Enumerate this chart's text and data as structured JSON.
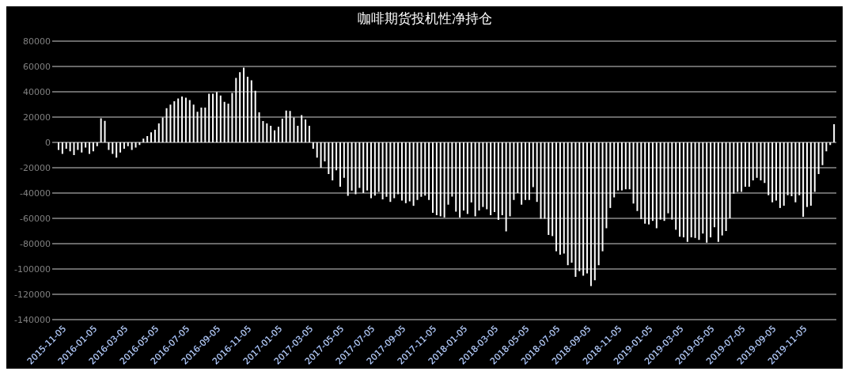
{
  "chart_data": {
    "type": "bar",
    "title": "咖啡期货投机性净持仓",
    "categories": [
      null,
      null,
      "2015-11-05",
      null,
      null,
      null,
      null,
      null,
      null,
      null,
      "2016-01-05",
      null,
      null,
      null,
      null,
      null,
      null,
      null,
      "2016-03-05",
      null,
      null,
      null,
      null,
      null,
      null,
      null,
      "2016-05-05",
      null,
      null,
      null,
      null,
      null,
      null,
      null,
      "2016-07-05",
      null,
      null,
      null,
      null,
      null,
      null,
      null,
      "2016-09-05",
      null,
      null,
      null,
      null,
      null,
      null,
      null,
      "2016-11-05",
      null,
      null,
      null,
      null,
      null,
      null,
      null,
      "2017-01-05",
      null,
      null,
      null,
      null,
      null,
      null,
      null,
      "2017-03-05",
      null,
      null,
      null,
      null,
      null,
      null,
      null,
      "2017-05-05",
      null,
      null,
      null,
      null,
      null,
      null,
      null,
      "2017-07-05",
      null,
      null,
      null,
      null,
      null,
      null,
      null,
      "2017-09-05",
      null,
      null,
      null,
      null,
      null,
      null,
      null,
      "2017-11-05",
      null,
      null,
      null,
      null,
      null,
      null,
      null,
      "2018-01-05",
      null,
      null,
      null,
      null,
      null,
      null,
      null,
      "2018-03-05",
      null,
      null,
      null,
      null,
      null,
      null,
      null,
      "2018-05-05",
      null,
      null,
      null,
      null,
      null,
      null,
      null,
      "2018-07-05",
      null,
      null,
      null,
      null,
      null,
      null,
      null,
      "2018-09-05",
      null,
      null,
      null,
      null,
      null,
      null,
      null,
      "2018-11-05",
      null,
      null,
      null,
      null,
      null,
      null,
      null,
      "2019-01-05",
      null,
      null,
      null,
      null,
      null,
      null,
      null,
      "2019-03-05",
      null,
      null,
      null,
      null,
      null,
      null,
      null,
      "2019-05-05",
      null,
      null,
      null,
      null,
      null,
      null,
      null,
      "2019-07-05",
      null,
      null,
      null,
      null,
      null,
      null,
      null,
      "2019-09-05",
      null,
      null,
      null,
      null,
      null,
      null,
      null,
      "2019-11-05",
      null,
      null,
      null,
      null,
      null,
      null,
      null
    ],
    "values": [
      -6000,
      -9000,
      -5000,
      -7000,
      -10000,
      -6000,
      -8000,
      -4000,
      -9000,
      -7000,
      -3000,
      19000,
      17000,
      -6000,
      -9000,
      -12000,
      -8000,
      -5000,
      -3000,
      -6000,
      -4000,
      -2000,
      3000,
      5000,
      8000,
      10000,
      15000,
      19700,
      27000,
      29800,
      32500,
      34700,
      36200,
      35300,
      33400,
      29800,
      24200,
      27500,
      27500,
      38400,
      38400,
      39800,
      37100,
      32000,
      30700,
      39000,
      50900,
      55500,
      59100,
      51800,
      49000,
      40800,
      23700,
      16900,
      15000,
      13200,
      9500,
      12300,
      18700,
      25200,
      24800,
      19700,
      13200,
      21500,
      18200,
      13200,
      -5000,
      -12000,
      -20000,
      -15000,
      -25000,
      -30000,
      -22000,
      -35000,
      -28000,
      -42200,
      -38200,
      -41000,
      -36000,
      -40000,
      -38000,
      -44000,
      -42000,
      -39000,
      -45000,
      -43000,
      -47000,
      -44000,
      -41000,
      -46000,
      -48000,
      -46500,
      -50100,
      -45500,
      -43000,
      -42000,
      -45500,
      -55600,
      -57500,
      -58400,
      -59300,
      -49200,
      -42800,
      -54700,
      -59300,
      -53800,
      -56500,
      -47400,
      -58400,
      -53800,
      -51000,
      -52800,
      -57500,
      -55000,
      -61200,
      -57500,
      -70300,
      -58400,
      -45500,
      -40000,
      -49200,
      -45500,
      -45500,
      -35300,
      -47000,
      -60300,
      -60300,
      -73100,
      -74000,
      -86000,
      -88700,
      -87800,
      -97000,
      -95000,
      -106200,
      -101700,
      -105300,
      -103500,
      -113500,
      -108900,
      -97000,
      -86000,
      -67800,
      -51800,
      -43400,
      -38000,
      -38000,
      -37000,
      -37000,
      -48300,
      -54200,
      -60600,
      -64200,
      -64800,
      -62000,
      -67800,
      -61000,
      -62000,
      -56000,
      -61000,
      -69000,
      -74500,
      -75000,
      -78600,
      -75000,
      -75500,
      -77000,
      -72000,
      -79200,
      -75000,
      -67000,
      -78600,
      -73500,
      -70000,
      -60000,
      -40500,
      -39000,
      -39000,
      -35000,
      -35000,
      -30000,
      -28000,
      -30000,
      -32000,
      -41700,
      -47300,
      -46000,
      -51800,
      -50000,
      -41700,
      -42500,
      -47300,
      -41700,
      -58800,
      -51000,
      -50000,
      -39000,
      -25000,
      -18000,
      -7000,
      -2000,
      14300
    ],
    "color": "#ffffff",
    "ylim": [
      -140000,
      80000
    ],
    "yticks": [
      -140000,
      -120000,
      -100000,
      -80000,
      -60000,
      -40000,
      -20000,
      0,
      20000,
      40000,
      60000,
      80000
    ],
    "grid": "y"
  }
}
